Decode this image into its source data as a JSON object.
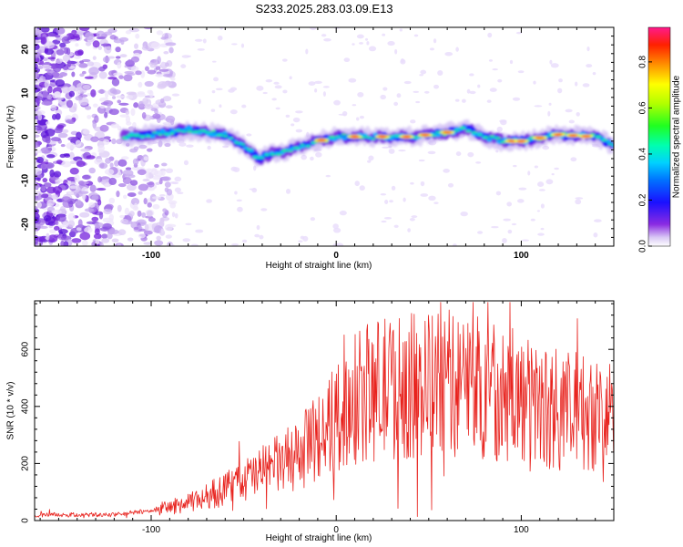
{
  "title": "S233.2025.283.03.09.E13",
  "chart_data": [
    {
      "type": "heatmap",
      "name": "spectrogram",
      "title": "S233.2025.283.03.09.E13",
      "xlabel": "Height of straight line (km)",
      "ylabel": "Frequency (Hz)",
      "xlim": [
        -163,
        150
      ],
      "ylim": [
        -25,
        25
      ],
      "xticks": [
        -100,
        0,
        100
      ],
      "yticks": [
        -20,
        -10,
        0,
        10,
        20
      ],
      "xtick_labels": [
        "-100",
        "0",
        "100"
      ],
      "ytick_labels": [
        "-20",
        "-10",
        "0",
        "10",
        "20"
      ],
      "colorbar": {
        "label": "Normalized spectral amplitude",
        "range": [
          0,
          0.95
        ],
        "ticks": [
          0.0,
          0.2,
          0.4,
          0.6,
          0.8
        ],
        "tick_labels": [
          "0.0",
          "0.2",
          "0.4",
          "0.6",
          "0.8"
        ]
      },
      "ridge": {
        "description_points_km_hz": [
          [
            -115,
            0
          ],
          [
            -100,
            0.5
          ],
          [
            -80,
            1.5
          ],
          [
            -60,
            0.5
          ],
          [
            -50,
            -2
          ],
          [
            -42,
            -5
          ],
          [
            -35,
            -4
          ],
          [
            -25,
            -3
          ],
          [
            -10,
            -1
          ],
          [
            0,
            0
          ],
          [
            20,
            0
          ],
          [
            40,
            0
          ],
          [
            60,
            1
          ],
          [
            70,
            2
          ],
          [
            80,
            0
          ],
          [
            90,
            -1
          ],
          [
            100,
            -1
          ],
          [
            120,
            0.5
          ],
          [
            140,
            0
          ],
          [
            150,
            -2
          ]
        ]
      }
    },
    {
      "type": "line",
      "name": "snr",
      "xlabel": "Height of straight line (km)",
      "ylabel": "SNR (10 * v/v)",
      "xlim": [
        -163,
        150
      ],
      "ylim": [
        0,
        770
      ],
      "xticks": [
        -100,
        0,
        100
      ],
      "yticks": [
        0,
        200,
        400,
        600
      ],
      "xtick_labels": [
        "-100",
        "0",
        "100"
      ],
      "ytick_labels": [
        "0",
        "200",
        "400",
        "600"
      ],
      "color": "#e8231e",
      "envelope_km_snr": [
        [
          -163,
          20
        ],
        [
          -120,
          20
        ],
        [
          -100,
          35
        ],
        [
          -80,
          60
        ],
        [
          -60,
          110
        ],
        [
          -40,
          170
        ],
        [
          -20,
          230
        ],
        [
          -10,
          290
        ],
        [
          0,
          360
        ],
        [
          10,
          420
        ],
        [
          20,
          460
        ],
        [
          40,
          470
        ],
        [
          60,
          480
        ],
        [
          80,
          470
        ],
        [
          100,
          420
        ],
        [
          120,
          390
        ],
        [
          140,
          370
        ],
        [
          150,
          380
        ]
      ]
    }
  ]
}
